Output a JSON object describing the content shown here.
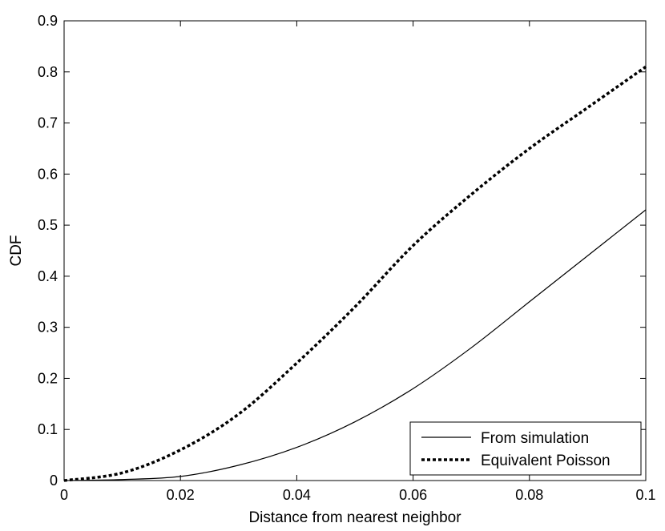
{
  "chart_data": {
    "type": "line",
    "title": "",
    "xlabel": "Distance from nearest neighbor",
    "ylabel": "CDF",
    "xlim": [
      0,
      0.1
    ],
    "ylim": [
      0,
      0.9
    ],
    "xticks": [
      "0",
      "0.02",
      "0.04",
      "0.06",
      "0.08",
      "0.1"
    ],
    "yticks": [
      "0",
      "0.1",
      "0.2",
      "0.3",
      "0.4",
      "0.5",
      "0.6",
      "0.7",
      "0.8",
      "0.9"
    ],
    "grid": false,
    "legend_position": "bottom-right",
    "series": [
      {
        "name": "From simulation",
        "style": "solid",
        "color": "#000000",
        "x": [
          0,
          0.01,
          0.02,
          0.03,
          0.04,
          0.05,
          0.06,
          0.07,
          0.08,
          0.09,
          0.1
        ],
        "y": [
          0,
          0.002,
          0.008,
          0.03,
          0.065,
          0.115,
          0.18,
          0.26,
          0.35,
          0.44,
          0.53
        ]
      },
      {
        "name": "Equivalent Poisson",
        "style": "dotted",
        "color": "#000000",
        "x": [
          0,
          0.01,
          0.02,
          0.03,
          0.04,
          0.05,
          0.06,
          0.07,
          0.08,
          0.09,
          0.1
        ],
        "y": [
          0,
          0.015,
          0.06,
          0.13,
          0.23,
          0.34,
          0.46,
          0.56,
          0.65,
          0.73,
          0.81
        ]
      }
    ]
  }
}
